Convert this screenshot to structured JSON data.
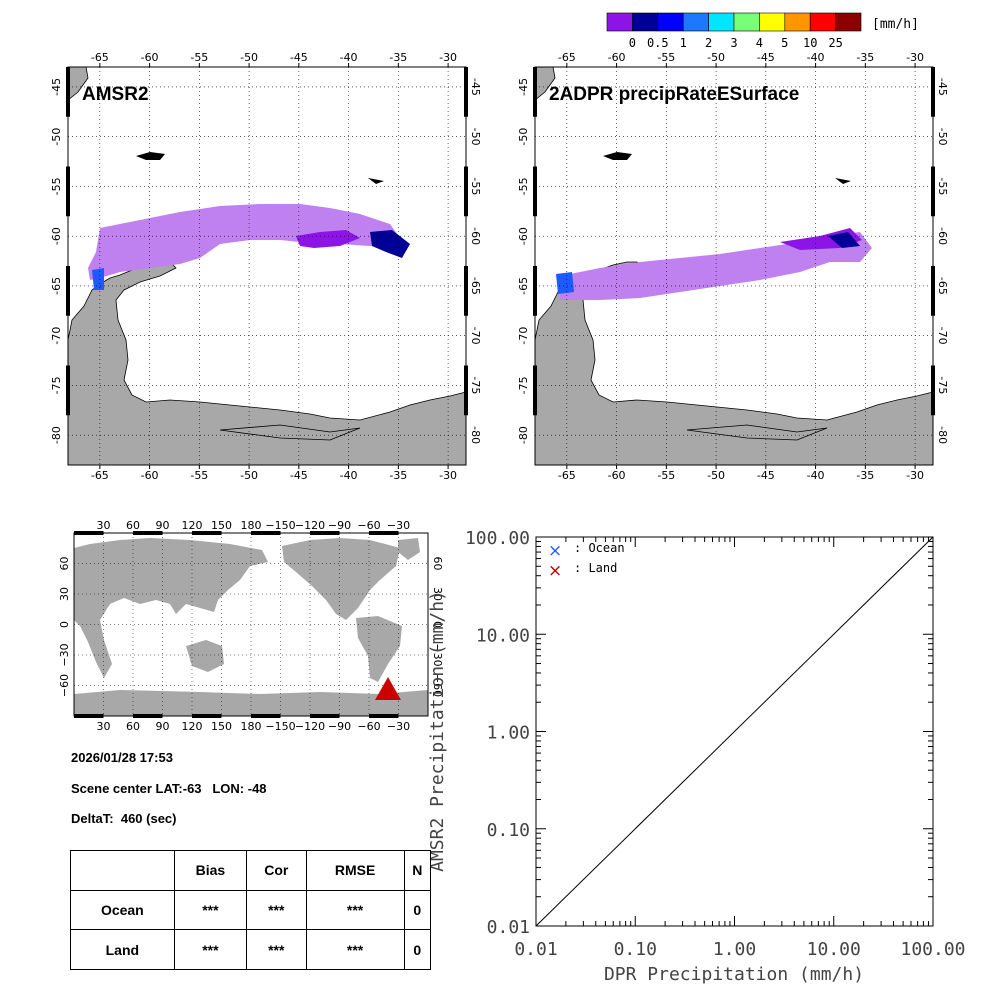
{
  "colorbar": {
    "unit": "[mm/h]",
    "colors": [
      "#8c14e6",
      "#000096",
      "#0000ff",
      "#1e78ff",
      "#00e6ff",
      "#78ff78",
      "#ffff00",
      "#ff9600",
      "#ff0000",
      "#8c0000"
    ],
    "labels": [
      "0",
      "0.5",
      "1",
      "2",
      "3",
      "4",
      "5",
      "10",
      "25"
    ]
  },
  "maps": [
    {
      "title": "AMSR2",
      "lon_ticks": [
        "-65",
        "-60",
        "-55",
        "-50",
        "-45",
        "-40",
        "-35",
        "-30"
      ],
      "lat_ticks": [
        "-45",
        "-50",
        "-55",
        "-60",
        "-65",
        "-70",
        "-75",
        "-80"
      ]
    },
    {
      "title": "2ADPR precipRateESurface",
      "lon_ticks": [
        "-65",
        "-60",
        "-55",
        "-50",
        "-45",
        "-40",
        "-35",
        "-30"
      ],
      "lat_ticks": [
        "-45",
        "-50",
        "-55",
        "-60",
        "-65",
        "-70",
        "-75",
        "-80"
      ]
    }
  ],
  "globe": {
    "lon_ticks": [
      "30",
      "60",
      "90",
      "120",
      "150",
      "180",
      "−150",
      "−120",
      "−90",
      "−60",
      "−30"
    ],
    "lat_ticks": [
      "60",
      "30",
      "0",
      "−30",
      "−60"
    ],
    "marker_color": "#cc0000"
  },
  "info": {
    "datetime": "2026/01/28 17:53",
    "scene_center": "Scene center LAT:-63   LON: -48",
    "delta_t": "DeltaT:  460 (sec)"
  },
  "stats": {
    "headers": [
      "",
      "Bias",
      "Cor",
      "RMSE",
      "N"
    ],
    "rows": [
      {
        "label": "Ocean",
        "bias": "***",
        "cor": "***",
        "rmse": "***",
        "n": "0"
      },
      {
        "label": "Land",
        "bias": "***",
        "cor": "***",
        "rmse": "***",
        "n": "0"
      }
    ]
  },
  "chart_data": {
    "type": "scatter",
    "title": "",
    "xlabel": "DPR Precipitation (mm/h)",
    "ylabel": "AMSR2 Precipitation (mm/h)",
    "xscale": "log",
    "yscale": "log",
    "xlim": [
      0.01,
      100.0
    ],
    "ylim": [
      0.01,
      100.0
    ],
    "x_tick_labels": [
      "0.01",
      "0.10",
      "1.00",
      "10.00",
      "100.00"
    ],
    "y_tick_labels": [
      "0.01",
      "0.10",
      "1.00",
      "10.00",
      "100.00"
    ],
    "reference_line": "1:1",
    "legend_placement": "top-left",
    "series": [
      {
        "name": "Ocean",
        "legend_label": ": Ocean",
        "marker": "x",
        "color": "#1e5aff",
        "points": []
      },
      {
        "name": "Land",
        "legend_label": ": Land",
        "marker": "x",
        "color": "#b40000",
        "points": []
      }
    ]
  }
}
